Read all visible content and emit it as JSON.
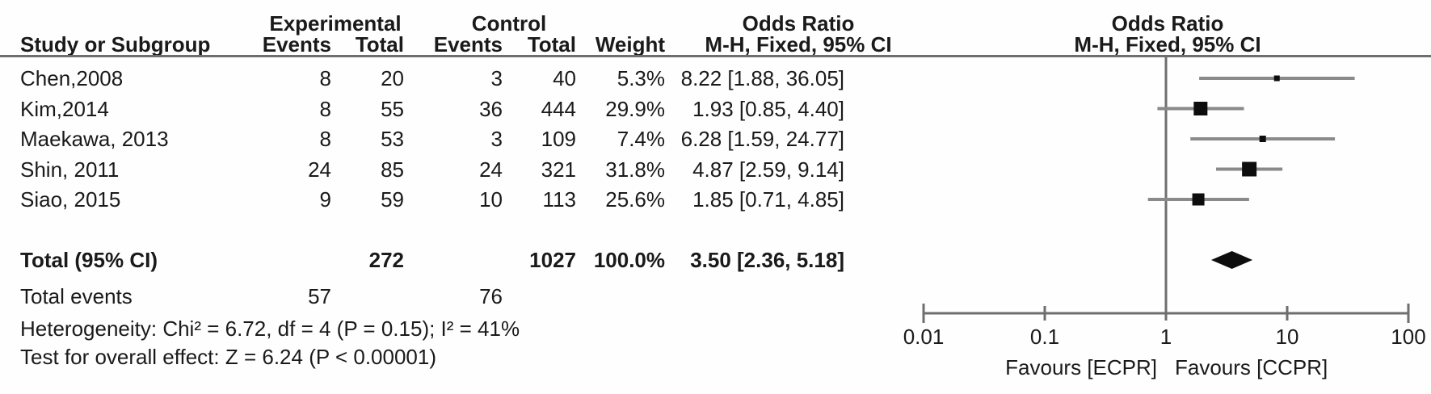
{
  "figure": {
    "headers": {
      "experimental": "Experimental",
      "control": "Control",
      "odds_ratio_left": "Odds Ratio",
      "odds_ratio_right": "Odds Ratio",
      "study": "Study or Subgroup",
      "events_exp": "Events",
      "total_exp": "Total",
      "events_ctrl": "Events",
      "total_ctrl": "Total",
      "weight": "Weight",
      "mh_fixed_ci_left": "M-H, Fixed, 95% CI",
      "mh_fixed_ci_right": "M-H, Fixed, 95% CI"
    },
    "rows": [
      {
        "study": "Chen,2008",
        "exp_events": "8",
        "exp_total": "20",
        "ctrl_events": "3",
        "ctrl_total": "40",
        "weight": "5.3%",
        "ci_text": "8.22 [1.88, 36.05]"
      },
      {
        "study": "Kim,2014",
        "exp_events": "8",
        "exp_total": "55",
        "ctrl_events": "36",
        "ctrl_total": "444",
        "weight": "29.9%",
        "ci_text": "1.93 [0.85, 4.40]"
      },
      {
        "study": "Maekawa, 2013",
        "exp_events": "8",
        "exp_total": "53",
        "ctrl_events": "3",
        "ctrl_total": "109",
        "weight": "7.4%",
        "ci_text": "6.28 [1.59, 24.77]"
      },
      {
        "study": "Shin, 2011",
        "exp_events": "24",
        "exp_total": "85",
        "ctrl_events": "24",
        "ctrl_total": "321",
        "weight": "31.8%",
        "ci_text": "4.87 [2.59, 9.14]"
      },
      {
        "study": "Siao, 2015",
        "exp_events": "9",
        "exp_total": "59",
        "ctrl_events": "10",
        "ctrl_total": "113",
        "weight": "25.6%",
        "ci_text": "1.85 [0.71, 4.85]"
      }
    ],
    "total_row": {
      "label": "Total (95% CI)",
      "exp_total": "272",
      "ctrl_total": "1027",
      "weight": "100.0%",
      "ci_text": "3.50 [2.36, 5.18]"
    },
    "total_events_row": {
      "label": "Total events",
      "exp_events": "57",
      "ctrl_events": "76"
    },
    "footnotes": {
      "heterogeneity": "Heterogeneity: Chi² = 6.72, df = 4 (P = 0.15); I² = 41%",
      "overall_effect": "Test for overall effect: Z = 6.24 (P < 0.00001)"
    }
  },
  "chart_data": {
    "type": "scatter",
    "subtype": "forest-plot",
    "title": "Odds Ratio",
    "effect_measure": "M-H, Fixed, 95% CI",
    "x_scale": "log10",
    "x_range": [
      0.01,
      100
    ],
    "x_ticks": [
      0.01,
      0.1,
      1,
      10,
      100
    ],
    "x_tick_labels": [
      "0.01",
      "0.1",
      "1",
      "10",
      "100"
    ],
    "null_line_value": 1,
    "xlabel_left": "Favours [ECPR]",
    "xlabel_right": "Favours [CCPR]",
    "studies": [
      {
        "name": "Chen,2008",
        "or": 8.22,
        "ci_low": 1.88,
        "ci_high": 36.05,
        "weight_pct": 5.3
      },
      {
        "name": "Kim,2014",
        "or": 1.93,
        "ci_low": 0.85,
        "ci_high": 4.4,
        "weight_pct": 29.9
      },
      {
        "name": "Maekawa, 2013",
        "or": 6.28,
        "ci_low": 1.59,
        "ci_high": 24.77,
        "weight_pct": 7.4
      },
      {
        "name": "Shin, 2011",
        "or": 4.87,
        "ci_low": 2.59,
        "ci_high": 9.14,
        "weight_pct": 31.8
      },
      {
        "name": "Siao, 2015",
        "or": 1.85,
        "ci_low": 0.71,
        "ci_high": 4.85,
        "weight_pct": 25.6
      }
    ],
    "total": {
      "name": "Total (95% CI)",
      "or": 3.5,
      "ci_low": 2.36,
      "ci_high": 5.18,
      "weight_pct": 100.0
    },
    "totals": {
      "exp_events": 57,
      "exp_total": 272,
      "ctrl_events": 76,
      "ctrl_total": 1027
    },
    "stats": {
      "chi2": 6.72,
      "df": 4,
      "p_heterogeneity": 0.15,
      "i2_pct": 41,
      "z": 6.24,
      "p_overall": "< 0.00001"
    }
  },
  "colors": {
    "text": "#1a1a1a",
    "rule_gray": "#6e6e6e",
    "ci_line_gray": "#8a8a8a",
    "marker_black": "#0d0d0d",
    "background": "#fefefe"
  }
}
